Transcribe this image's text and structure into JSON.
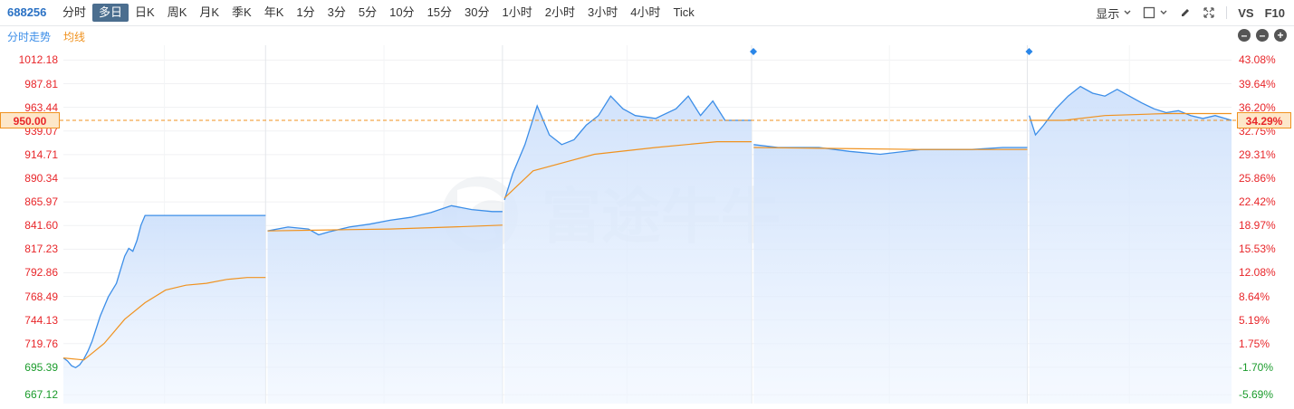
{
  "header": {
    "symbol": "688256",
    "tabs": [
      "分时",
      "多日",
      "日K",
      "周K",
      "月K",
      "季K",
      "年K",
      "1分",
      "3分",
      "5分",
      "10分",
      "15分",
      "30分",
      "1小时",
      "2小时",
      "3小时",
      "4小时",
      "Tick"
    ],
    "active_tab": "多日",
    "tools": {
      "display_label": "显示",
      "vs_label": "VS",
      "f10_label": "F10"
    }
  },
  "legend": {
    "price": "分时走势",
    "avg": "均线"
  },
  "watermark": "富途牛牛",
  "colors": {
    "price_line": "#3c8ee8",
    "avg_line": "#f0921f",
    "up": "#e8262a",
    "down": "#1a9b2b",
    "active_tab": "#4b6e8f"
  },
  "chart_data": {
    "type": "line",
    "series": [
      {
        "name": "分时走势",
        "values": [
          [
            0,
            705
          ],
          [
            2,
            702
          ],
          [
            4,
            697
          ],
          [
            6,
            695
          ],
          [
            8,
            698
          ],
          [
            10,
            704
          ],
          [
            12,
            712
          ],
          [
            14,
            722
          ],
          [
            16,
            735
          ],
          [
            18,
            748
          ],
          [
            20,
            758
          ],
          [
            22,
            768
          ],
          [
            24,
            775
          ],
          [
            26,
            782
          ],
          [
            28,
            796
          ],
          [
            30,
            810
          ],
          [
            32,
            818
          ],
          [
            34,
            815
          ],
          [
            36,
            826
          ],
          [
            38,
            842
          ],
          [
            40,
            852
          ],
          [
            42,
            852
          ],
          [
            44,
            852
          ],
          [
            46,
            852
          ],
          [
            48,
            852
          ],
          [
            50,
            852
          ],
          [
            60,
            852
          ],
          [
            70,
            852
          ],
          [
            80,
            852
          ],
          [
            90,
            852
          ],
          [
            99,
            852
          ],
          [
            100,
            836
          ],
          [
            110,
            840
          ],
          [
            120,
            838
          ],
          [
            125,
            832
          ],
          [
            130,
            835
          ],
          [
            140,
            840
          ],
          [
            150,
            843
          ],
          [
            160,
            847
          ],
          [
            170,
            850
          ],
          [
            180,
            855
          ],
          [
            190,
            862
          ],
          [
            200,
            858
          ],
          [
            210,
            856
          ],
          [
            215,
            856
          ],
          [
            216,
            868
          ],
          [
            220,
            895
          ],
          [
            226,
            925
          ],
          [
            232,
            965
          ],
          [
            238,
            935
          ],
          [
            244,
            925
          ],
          [
            250,
            930
          ],
          [
            256,
            945
          ],
          [
            262,
            955
          ],
          [
            268,
            975
          ],
          [
            274,
            962
          ],
          [
            280,
            955
          ],
          [
            290,
            952
          ],
          [
            300,
            962
          ],
          [
            306,
            975
          ],
          [
            312,
            955
          ],
          [
            318,
            970
          ],
          [
            324,
            950
          ],
          [
            330,
            950
          ],
          [
            337,
            950
          ],
          [
            338,
            925
          ],
          [
            350,
            922
          ],
          [
            370,
            922
          ],
          [
            385,
            918
          ],
          [
            400,
            915
          ],
          [
            420,
            920
          ],
          [
            445,
            920
          ],
          [
            460,
            922
          ],
          [
            472,
            922
          ],
          [
            473,
            955
          ],
          [
            476,
            935
          ],
          [
            480,
            945
          ],
          [
            486,
            962
          ],
          [
            492,
            975
          ],
          [
            498,
            985
          ],
          [
            504,
            978
          ],
          [
            510,
            975
          ],
          [
            516,
            982
          ],
          [
            522,
            975
          ],
          [
            528,
            968
          ],
          [
            534,
            962
          ],
          [
            540,
            958
          ],
          [
            546,
            960
          ],
          [
            552,
            955
          ],
          [
            558,
            952
          ],
          [
            564,
            955
          ],
          [
            572,
            950
          ]
        ]
      },
      {
        "name": "均线",
        "values": [
          [
            0,
            705
          ],
          [
            10,
            703
          ],
          [
            20,
            720
          ],
          [
            30,
            745
          ],
          [
            40,
            762
          ],
          [
            50,
            775
          ],
          [
            60,
            780
          ],
          [
            70,
            782
          ],
          [
            80,
            786
          ],
          [
            90,
            788
          ],
          [
            99,
            788
          ],
          [
            100,
            836
          ],
          [
            130,
            837
          ],
          [
            160,
            838
          ],
          [
            190,
            840
          ],
          [
            215,
            842
          ],
          [
            216,
            870
          ],
          [
            230,
            898
          ],
          [
            260,
            915
          ],
          [
            290,
            922
          ],
          [
            320,
            928
          ],
          [
            337,
            928
          ],
          [
            338,
            922
          ],
          [
            380,
            921
          ],
          [
            420,
            920
          ],
          [
            472,
            920
          ],
          [
            473,
            950
          ],
          [
            490,
            950
          ],
          [
            510,
            955
          ],
          [
            540,
            957
          ],
          [
            572,
            957
          ]
        ]
      }
    ],
    "session_breaks": [
      99,
      215,
      337,
      472
    ],
    "x_range": [
      0,
      572
    ],
    "y_range": [
      658,
      1020
    ],
    "yticks": [
      "1012.18",
      "987.81",
      "963.44",
      "939.07",
      "914.71",
      "890.34",
      "865.97",
      "841.60",
      "817.23",
      "792.86",
      "768.49",
      "744.13",
      "719.76",
      "695.39",
      "667.12"
    ],
    "ytick_values": [
      1012.18,
      987.81,
      963.44,
      939.07,
      914.71,
      890.34,
      865.97,
      841.6,
      817.23,
      792.86,
      768.49,
      744.13,
      719.76,
      695.39,
      667.12
    ],
    "pct_ticks": [
      "43.08%",
      "39.64%",
      "36.20%",
      "32.75%",
      "29.31%",
      "25.86%",
      "22.42%",
      "18.97%",
      "15.53%",
      "12.08%",
      "8.64%",
      "5.19%",
      "1.75%",
      "-1.70%",
      "-5.69%"
    ],
    "current_price": "950.00",
    "current_pct": "34.29%"
  }
}
